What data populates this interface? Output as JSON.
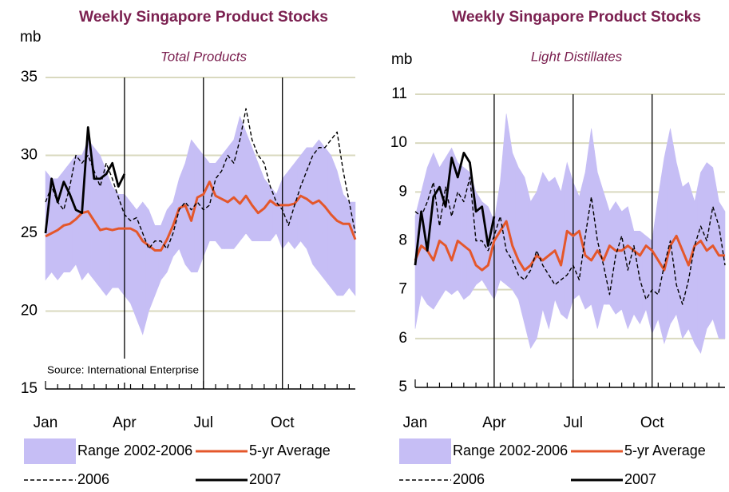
{
  "chart_data": [
    {
      "type": "line",
      "title": "Weekly Singapore Product Stocks",
      "subtitle": "Total Products",
      "y_label": "mb",
      "annotation": "Source: International Enterprise",
      "categories": [
        "Jan",
        null,
        null,
        null,
        null,
        null,
        null,
        null,
        null,
        null,
        null,
        null,
        null,
        "Apr",
        null,
        null,
        null,
        null,
        null,
        null,
        null,
        null,
        null,
        null,
        null,
        null,
        "Jul",
        null,
        null,
        null,
        null,
        null,
        null,
        null,
        null,
        null,
        null,
        null,
        null,
        "Oct",
        null,
        null,
        null,
        null,
        null,
        null,
        null,
        null,
        null,
        null,
        null,
        null
      ],
      "ylim": [
        15,
        35
      ],
      "yticks": [
        15,
        20,
        25,
        30,
        35
      ],
      "grid": true,
      "series": [
        {
          "name": "Range 2002-2006",
          "color": "#c6bef5",
          "high": [
            29,
            28.5,
            28.5,
            29,
            29.5,
            30,
            30,
            31,
            30.5,
            30,
            29,
            28,
            27.5,
            27.5,
            27,
            26.5,
            27,
            26.5,
            25.5,
            25.5,
            26.5,
            27,
            28.5,
            29.5,
            31,
            30.5,
            30,
            29.5,
            29.5,
            30,
            30.5,
            31,
            32.5,
            31.5,
            30.5,
            29.5,
            28.5,
            28,
            27.5,
            28.5,
            29,
            29.5,
            30,
            30.5,
            30.5,
            31,
            30.5,
            30,
            29,
            27.5,
            27,
            27
          ],
          "low": [
            22,
            22.5,
            22,
            22.5,
            22.5,
            23,
            22,
            22.5,
            22,
            21.5,
            21,
            21.5,
            21.5,
            21,
            20.5,
            19.5,
            18.5,
            20,
            21,
            22,
            22.5,
            23.5,
            24,
            23,
            22.5,
            22.5,
            23.5,
            24.5,
            24.5,
            24,
            24,
            24,
            24.5,
            25,
            24.5,
            24.5,
            24.5,
            24.5,
            25,
            24,
            24.5,
            24,
            24.5,
            24,
            23,
            22.5,
            22,
            21.5,
            21,
            21,
            21.5,
            21
          ]
        },
        {
          "name": "5-yr Average",
          "color": "#e4572b",
          "style": "solid",
          "values": [
            24.8,
            25,
            25.2,
            25.5,
            25.6,
            25.9,
            26.3,
            26.4,
            25.8,
            25.2,
            25.3,
            25.2,
            25.3,
            25.3,
            25.3,
            25.1,
            24.5,
            24.2,
            23.9,
            23.9,
            24.6,
            25.5,
            26.6,
            26.8,
            25.8,
            27.3,
            27.5,
            28.3,
            27.4,
            27.2,
            27,
            27.3,
            26.9,
            27.4,
            26.8,
            26.3,
            26.6,
            27.1,
            26.8,
            26.8,
            26.8,
            26.9,
            27.4,
            27.2,
            26.9,
            27.1,
            26.7,
            26.2,
            25.8,
            25.6,
            25.6,
            24.6
          ]
        },
        {
          "name": "2006",
          "color": "#000000",
          "style": "dashed",
          "values": [
            27,
            28,
            27,
            26.5,
            28,
            30,
            29.5,
            30,
            29,
            28,
            29.5,
            28.5,
            27.3,
            26.2,
            25.8,
            26,
            25,
            24,
            24.5,
            24.5,
            24,
            25,
            26.5,
            27,
            26.5,
            27,
            26.5,
            26.8,
            28.5,
            29,
            30,
            29.5,
            31,
            33,
            31,
            30,
            29.5,
            28,
            27,
            26.5,
            25.5,
            26.8,
            28,
            29,
            30,
            30.5,
            30.5,
            31,
            31.5,
            29,
            27,
            25
          ]
        },
        {
          "name": "2007",
          "color": "#000000",
          "style": "solid",
          "values": [
            25,
            28.5,
            27,
            28.3,
            27.5,
            26.5,
            26.3,
            31.8,
            28.5,
            28.5,
            28.8,
            29.5,
            28,
            28.8,
            null,
            null,
            null,
            null,
            null,
            null,
            null,
            null,
            null,
            null,
            null,
            null,
            null,
            null,
            null,
            null,
            null,
            null,
            null,
            null,
            null,
            null,
            null,
            null,
            null,
            null,
            null,
            null,
            null,
            null,
            null,
            null,
            null,
            null,
            null,
            null,
            null,
            null
          ]
        }
      ]
    },
    {
      "type": "line",
      "title": "Weekly Singapore Product Stocks",
      "subtitle": "Light Distillates",
      "y_label": "mb",
      "categories": [
        "Jan",
        null,
        null,
        null,
        null,
        null,
        null,
        null,
        null,
        null,
        null,
        null,
        null,
        "Apr",
        null,
        null,
        null,
        null,
        null,
        null,
        null,
        null,
        null,
        null,
        null,
        null,
        "Jul",
        null,
        null,
        null,
        null,
        null,
        null,
        null,
        null,
        null,
        null,
        null,
        null,
        "Oct",
        null,
        null,
        null,
        null,
        null,
        null,
        null,
        null,
        null,
        null,
        null,
        null
      ],
      "ylim": [
        5,
        11
      ],
      "yticks": [
        5,
        6,
        7,
        8,
        9,
        10,
        11
      ],
      "grid": true,
      "series": [
        {
          "name": "Range 2002-2006",
          "color": "#c6bef5",
          "high": [
            8.5,
            9,
            9.5,
            9.8,
            9.5,
            9.7,
            9.9,
            9.6,
            9.5,
            9.4,
            9,
            8.8,
            8.7,
            8.4,
            9.2,
            10.6,
            9.8,
            9.5,
            9.3,
            8.8,
            9,
            9.4,
            9.2,
            9.3,
            9,
            9.6,
            9.2,
            8.9,
            9.4,
            10.3,
            9.4,
            9,
            8.6,
            8.8,
            8.6,
            8.7,
            8.2,
            8.2,
            8.1,
            8,
            8.9,
            9.7,
            10.3,
            9.6,
            9.1,
            9.2,
            8.8,
            9.4,
            9.6,
            9.5,
            8.8,
            8.6
          ],
          "low": [
            6.2,
            6.9,
            6.7,
            6.6,
            6.8,
            7,
            6.9,
            7,
            6.8,
            6.9,
            7.1,
            7.2,
            7,
            6.8,
            7.2,
            7.1,
            7,
            6.8,
            6.3,
            5.8,
            6,
            6.6,
            6.2,
            6.8,
            6.5,
            6.4,
            6.8,
            6.9,
            6.6,
            6.7,
            6.2,
            6.7,
            6.7,
            6.5,
            6.6,
            6.2,
            6.5,
            6.3,
            6.6,
            6.1,
            6.4,
            5.9,
            6.3,
            6.5,
            6,
            6.2,
            5.9,
            5.7,
            6.2,
            6.4,
            6,
            6
          ]
        },
        {
          "name": "5-yr Average",
          "color": "#e4572b",
          "style": "solid",
          "values": [
            7.6,
            7.9,
            7.8,
            7.6,
            8,
            7.9,
            7.6,
            8,
            7.9,
            7.8,
            7.5,
            7.4,
            7.5,
            8,
            8.2,
            8.4,
            7.9,
            7.6,
            7.4,
            7.5,
            7.7,
            7.6,
            7.7,
            7.8,
            7.5,
            8.2,
            8.1,
            8.2,
            7.7,
            7.6,
            7.8,
            7.6,
            7.9,
            7.8,
            7.8,
            7.9,
            7.8,
            7.7,
            7.9,
            7.8,
            7.6,
            7.4,
            7.9,
            8.1,
            7.8,
            7.5,
            7.9,
            8,
            7.8,
            7.9,
            7.7,
            7.7
          ]
        },
        {
          "name": "2006",
          "color": "#000000",
          "style": "dashed",
          "values": [
            8.6,
            8.5,
            8.8,
            9.2,
            8.3,
            9.1,
            8.5,
            9,
            8.8,
            9.3,
            8,
            8,
            7.8,
            8.1,
            8.5,
            7.8,
            7.6,
            7.3,
            7.2,
            7.4,
            7.8,
            7.5,
            7.3,
            7.1,
            7.2,
            7.3,
            7.5,
            7.2,
            8.1,
            8.9,
            8,
            7.5,
            6.9,
            7.7,
            8.1,
            7.4,
            7.9,
            7.2,
            6.8,
            7,
            6.9,
            7.5,
            8,
            7.1,
            6.7,
            7.2,
            7.9,
            8.3,
            8,
            8.7,
            8.3,
            7.5
          ]
        },
        {
          "name": "2007",
          "color": "#000000",
          "style": "solid",
          "values": [
            7.5,
            8.6,
            7.8,
            8.9,
            9.1,
            8.7,
            9.7,
            9.3,
            9.8,
            9.6,
            8.6,
            8.7,
            7.9,
            8.5,
            null,
            null,
            null,
            null,
            null,
            null,
            null,
            null,
            null,
            null,
            null,
            null,
            null,
            null,
            null,
            null,
            null,
            null,
            null,
            null,
            null,
            null,
            null,
            null,
            null,
            null,
            null,
            null,
            null,
            null,
            null,
            null,
            null,
            null,
            null,
            null,
            null,
            null
          ]
        }
      ]
    }
  ]
}
